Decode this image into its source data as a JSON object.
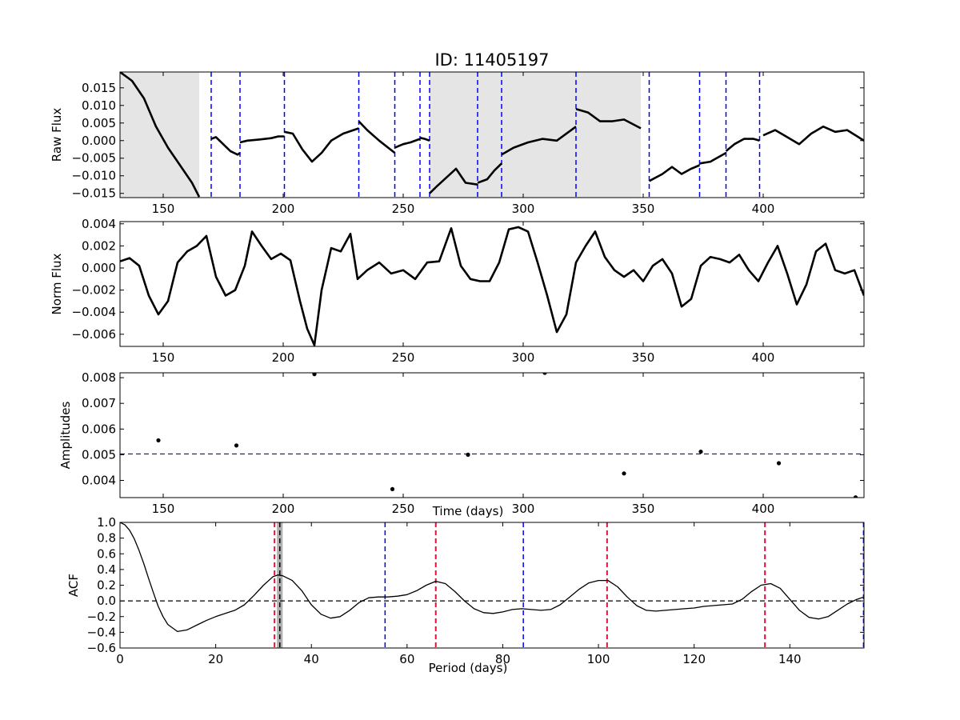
{
  "title": "ID: 11405197",
  "chart_data": [
    {
      "type": "line",
      "ylabel": "Raw Flux",
      "xlabel": "",
      "xlim": [
        132,
        442
      ],
      "ylim": [
        -0.0162,
        0.0195
      ],
      "xticks": [
        "150",
        "200",
        "250",
        "300",
        "350",
        "400"
      ],
      "xtick_values": [
        150,
        200,
        250,
        300,
        350,
        400
      ],
      "yticks": [
        "−0.015",
        "−0.010",
        "−0.005",
        "0.000",
        "0.005",
        "0.010",
        "0.015"
      ],
      "ytick_values": [
        -0.015,
        -0.01,
        -0.005,
        0.0,
        0.005,
        0.01,
        0.015
      ],
      "shaded_regions": [
        [
          132,
          165
        ],
        [
          261,
          349
        ]
      ],
      "vlines": [
        170,
        182,
        200.5,
        231.5,
        246.5,
        257,
        261,
        281,
        291,
        322,
        352.5,
        373.5,
        384.5,
        398.5
      ],
      "vline_color": "#0000ff",
      "line_color": "#000000",
      "shade_color": "#e5e5e5",
      "series": [
        {
          "x": [
            132,
            137,
            142,
            147,
            152,
            157,
            162,
            165
          ],
          "y": [
            0.0195,
            0.017,
            0.012,
            0.004,
            -0.002,
            -0.007,
            -0.012,
            -0.016
          ]
        },
        {
          "x": [
            170,
            172,
            175,
            178,
            181,
            182
          ],
          "y": [
            0.0005,
            0.001,
            -0.001,
            -0.003,
            -0.004,
            -0.0035
          ]
        },
        {
          "x": [
            182,
            185,
            190,
            195,
            198,
            200.5
          ],
          "y": [
            -0.0005,
            0.0,
            0.0003,
            0.0007,
            0.0012,
            0.0012
          ]
        },
        {
          "x": [
            200.5,
            204,
            208,
            212,
            216,
            220,
            225,
            231.5
          ],
          "y": [
            0.0025,
            0.002,
            -0.0025,
            -0.006,
            -0.0035,
            0.0,
            0.002,
            0.0035
          ]
        },
        {
          "x": [
            231.5,
            235,
            240,
            246.5
          ],
          "y": [
            0.0055,
            0.003,
            0.0,
            -0.0035
          ]
        },
        {
          "x": [
            246.5,
            250,
            253,
            257
          ],
          "y": [
            -0.002,
            -0.001,
            -0.0005,
            0.0005
          ]
        },
        {
          "x": [
            257,
            259,
            261
          ],
          "y": [
            0.0008,
            0.0005,
            0.0
          ]
        },
        {
          "x": [
            261,
            264,
            268,
            272,
            276,
            281
          ],
          "y": [
            -0.015,
            -0.013,
            -0.0105,
            -0.008,
            -0.012,
            -0.0125
          ]
        },
        {
          "x": [
            281,
            285,
            288,
            291
          ],
          "y": [
            -0.012,
            -0.011,
            -0.0085,
            -0.0065
          ]
        },
        {
          "x": [
            291,
            296,
            302,
            308,
            314,
            322
          ],
          "y": [
            -0.004,
            -0.002,
            -0.0005,
            0.0005,
            0.0,
            0.004
          ]
        },
        {
          "x": [
            322,
            327,
            332,
            337,
            342,
            349
          ],
          "y": [
            0.009,
            0.008,
            0.0055,
            0.0055,
            0.006,
            0.0035
          ]
        },
        {
          "x": [
            352.5,
            358,
            362,
            366,
            370,
            373.5
          ],
          "y": [
            -0.0115,
            -0.0095,
            -0.0075,
            -0.0095,
            -0.008,
            -0.007
          ]
        },
        {
          "x": [
            373.5,
            378,
            384.5
          ],
          "y": [
            -0.0065,
            -0.006,
            -0.0035
          ]
        },
        {
          "x": [
            384.5,
            388,
            392,
            396,
            398.5
          ],
          "y": [
            -0.003,
            -0.001,
            0.0005,
            0.0005,
            0.0
          ]
        },
        {
          "x": [
            400,
            405,
            410,
            415,
            420,
            425,
            430,
            435,
            442
          ],
          "y": [
            0.0015,
            0.003,
            0.001,
            -0.001,
            0.002,
            0.004,
            0.0025,
            0.003,
            0.0
          ]
        }
      ]
    },
    {
      "type": "line",
      "ylabel": "Norm Flux",
      "xlabel": "",
      "xlim": [
        132,
        442
      ],
      "ylim": [
        -0.0071,
        0.0042
      ],
      "xticks": [
        "150",
        "200",
        "250",
        "300",
        "350",
        "400"
      ],
      "xtick_values": [
        150,
        200,
        250,
        300,
        350,
        400
      ],
      "yticks": [
        "−0.006",
        "−0.004",
        "−0.002",
        "0.000",
        "0.002",
        "0.004"
      ],
      "ytick_values": [
        -0.006,
        -0.004,
        -0.002,
        0.0,
        0.002,
        0.004
      ],
      "line_color": "#000000",
      "series": [
        {
          "x": [
            132,
            136,
            140,
            144,
            148,
            152,
            156,
            160,
            164,
            168,
            172,
            176,
            180,
            184,
            187,
            191,
            195,
            199,
            203,
            207,
            210,
            213,
            216,
            220,
            224,
            228,
            231,
            235,
            240,
            245,
            250,
            255,
            260,
            265,
            270,
            274,
            278,
            282,
            286,
            290,
            294,
            298,
            302,
            306,
            310,
            314,
            318,
            322,
            326,
            330,
            334,
            338,
            342,
            346,
            350,
            354,
            358,
            362,
            366,
            370,
            374,
            378,
            382,
            386,
            390,
            394,
            398,
            402,
            406,
            410,
            414,
            418,
            422,
            426,
            430,
            434,
            438,
            442
          ],
          "y": [
            0.0006,
            0.0009,
            0.0002,
            -0.0025,
            -0.0042,
            -0.003,
            0.0005,
            0.0015,
            0.002,
            0.0029,
            -0.0008,
            -0.0025,
            -0.002,
            0.0002,
            0.0033,
            0.002,
            0.0008,
            0.0013,
            0.0007,
            -0.003,
            -0.0055,
            -0.007,
            -0.002,
            0.0018,
            0.0015,
            0.0031,
            -0.001,
            -0.0002,
            0.0005,
            -0.0005,
            -0.0002,
            -0.001,
            0.0005,
            0.0006,
            0.0036,
            0.0002,
            -0.001,
            -0.0012,
            -0.0012,
            0.0005,
            0.0035,
            0.0037,
            0.0033,
            0.0005,
            -0.0025,
            -0.0058,
            -0.0042,
            0.0005,
            0.002,
            0.0033,
            0.001,
            -0.0002,
            -0.0008,
            -0.0002,
            -0.0012,
            0.0002,
            0.0008,
            -0.0005,
            -0.0035,
            -0.0028,
            0.0002,
            0.001,
            0.0008,
            0.0005,
            0.0012,
            -0.0002,
            -0.0012,
            0.0005,
            0.002,
            -0.0005,
            -0.0033,
            -0.0015,
            0.0015,
            0.0022,
            -0.0002,
            -0.0005,
            -0.0002,
            -0.0025
          ]
        }
      ]
    },
    {
      "type": "scatter",
      "ylabel": "Amplitudes",
      "xlabel": "Time (days)",
      "xlim": [
        132,
        442
      ],
      "ylim": [
        0.00333,
        0.00819
      ],
      "xticks": [
        "150",
        "200",
        "250",
        "300",
        "350",
        "400"
      ],
      "xtick_values": [
        150,
        200,
        250,
        300,
        350,
        400
      ],
      "yticks": [
        "0.004",
        "0.005",
        "0.006",
        "0.007",
        "0.008"
      ],
      "ytick_values": [
        0.004,
        0.005,
        0.006,
        0.007,
        0.008
      ],
      "hline": 0.00503,
      "hline_color": "#0000ff",
      "points": {
        "x": [
          148,
          180.5,
          213,
          245.5,
          277,
          309,
          342,
          374,
          406.5,
          438.5
        ],
        "y": [
          0.00556,
          0.00536,
          0.00814,
          0.00366,
          0.005,
          0.00819,
          0.00427,
          0.00512,
          0.00467,
          0.00334
        ]
      }
    },
    {
      "type": "line",
      "ylabel": "ACF",
      "xlabel": "Period (days)",
      "xlim": [
        0,
        155.5
      ],
      "ylim": [
        -0.6,
        1.0
      ],
      "xticks": [
        "0",
        "20",
        "40",
        "60",
        "80",
        "100",
        "120",
        "140"
      ],
      "xtick_values": [
        0,
        20,
        40,
        60,
        80,
        100,
        120,
        140
      ],
      "yticks": [
        "−0.6",
        "−0.4",
        "−0.2",
        "0.0",
        "0.2",
        "0.4",
        "0.6",
        "0.8",
        "1.0"
      ],
      "ytick_values": [
        -0.6,
        -0.4,
        -0.2,
        0.0,
        0.2,
        0.4,
        0.6,
        0.8,
        1.0
      ],
      "hline": 0.0,
      "shaded_band": [
        32.8,
        34.0
      ],
      "black_vline": 33.4,
      "red_vlines": [
        32.3,
        66.0,
        101.8,
        134.8
      ],
      "blue_vlines": [
        55.4,
        84.3,
        155.4
      ],
      "red_color": "#dc143c",
      "blue_color": "#0000ff",
      "series": [
        {
          "x": [
            0,
            1,
            2,
            3,
            4,
            5,
            6,
            7,
            8,
            9,
            10,
            12,
            14,
            16,
            18,
            20,
            22,
            24,
            26,
            28,
            30,
            32,
            33,
            34,
            36,
            38,
            40,
            42,
            44,
            46,
            48,
            50,
            52,
            54,
            56,
            58,
            60,
            62,
            64,
            66,
            68,
            70,
            72,
            74,
            76,
            78,
            80,
            82,
            84,
            86,
            88,
            90,
            92,
            94,
            96,
            98,
            100,
            102,
            104,
            106,
            108,
            110,
            112,
            114,
            116,
            118,
            120,
            122,
            124,
            126,
            128,
            130,
            132,
            134,
            136,
            138,
            140,
            142,
            144,
            146,
            148,
            150,
            152,
            154,
            155.5
          ],
          "y": [
            1.0,
            0.97,
            0.9,
            0.79,
            0.64,
            0.47,
            0.28,
            0.1,
            -0.07,
            -0.2,
            -0.3,
            -0.39,
            -0.37,
            -0.31,
            -0.25,
            -0.2,
            -0.16,
            -0.12,
            -0.05,
            0.07,
            0.2,
            0.31,
            0.33,
            0.32,
            0.26,
            0.13,
            -0.05,
            -0.17,
            -0.22,
            -0.2,
            -0.12,
            -0.02,
            0.04,
            0.05,
            0.05,
            0.06,
            0.08,
            0.13,
            0.2,
            0.25,
            0.22,
            0.12,
            0.0,
            -0.1,
            -0.15,
            -0.16,
            -0.14,
            -0.11,
            -0.1,
            -0.11,
            -0.12,
            -0.11,
            -0.05,
            0.05,
            0.15,
            0.23,
            0.26,
            0.26,
            0.18,
            0.05,
            -0.06,
            -0.12,
            -0.13,
            -0.12,
            -0.11,
            -0.1,
            -0.09,
            -0.07,
            -0.06,
            -0.05,
            -0.04,
            0.02,
            0.12,
            0.2,
            0.22,
            0.16,
            0.02,
            -0.12,
            -0.21,
            -0.23,
            -0.2,
            -0.12,
            -0.04,
            0.02,
            0.05
          ]
        }
      ]
    }
  ]
}
